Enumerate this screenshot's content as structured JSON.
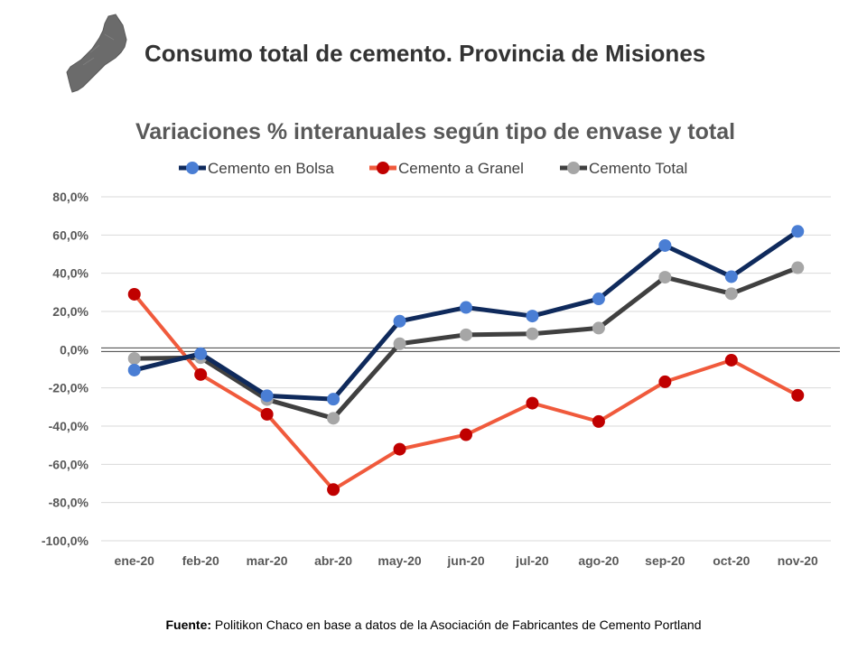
{
  "header": {
    "title": "Consumo total de cemento. Provincia de Misiones"
  },
  "chart_data": {
    "type": "line",
    "title": "Variaciones % interanuales según tipo de envase y total",
    "categories": [
      "ene-20",
      "feb-20",
      "mar-20",
      "abr-20",
      "may-20",
      "jun-20",
      "jul-20",
      "ago-20",
      "sep-20",
      "oct-20",
      "nov-20"
    ],
    "ylim": [
      -100,
      80
    ],
    "yticks": [
      -100,
      -80,
      -60,
      -40,
      -20,
      0,
      20,
      40,
      60,
      80
    ],
    "ytick_labels": [
      "-100,0%",
      "-80,0%",
      "-60,0%",
      "-40,0%",
      "-20,0%",
      "0,0%",
      "20,0%",
      "40,0%",
      "60,0%",
      "80,0%"
    ],
    "grid": true,
    "legend_position": "top",
    "series": [
      {
        "name": "Cemento en Bolsa",
        "line_color": "#0f2a5c",
        "marker_color": "#4a7ed4",
        "values": [
          -10.7,
          -2.1,
          -24.1,
          -25.9,
          14.9,
          22.1,
          17.6,
          26.6,
          54.5,
          38.2,
          61.9
        ]
      },
      {
        "name": "Cemento a Granel",
        "line_color": "#f05a3c",
        "marker_color": "#c00000",
        "values": [
          29.0,
          -13.0,
          -33.8,
          -73.2,
          -52.1,
          -44.5,
          -28.0,
          -37.6,
          -16.8,
          -5.5,
          -23.9
        ]
      },
      {
        "name": "Cemento Total",
        "line_color": "#404040",
        "marker_color": "#a6a6a6",
        "values": [
          -4.6,
          -4.2,
          -26.1,
          -35.9,
          3.1,
          7.8,
          8.3,
          11.3,
          37.9,
          29.3,
          42.9
        ]
      }
    ]
  },
  "footer": {
    "source_label": "Fuente:",
    "source_text": " Politikon Chaco en base a datos de la Asociación de Fabricantes de Cemento Portland"
  }
}
